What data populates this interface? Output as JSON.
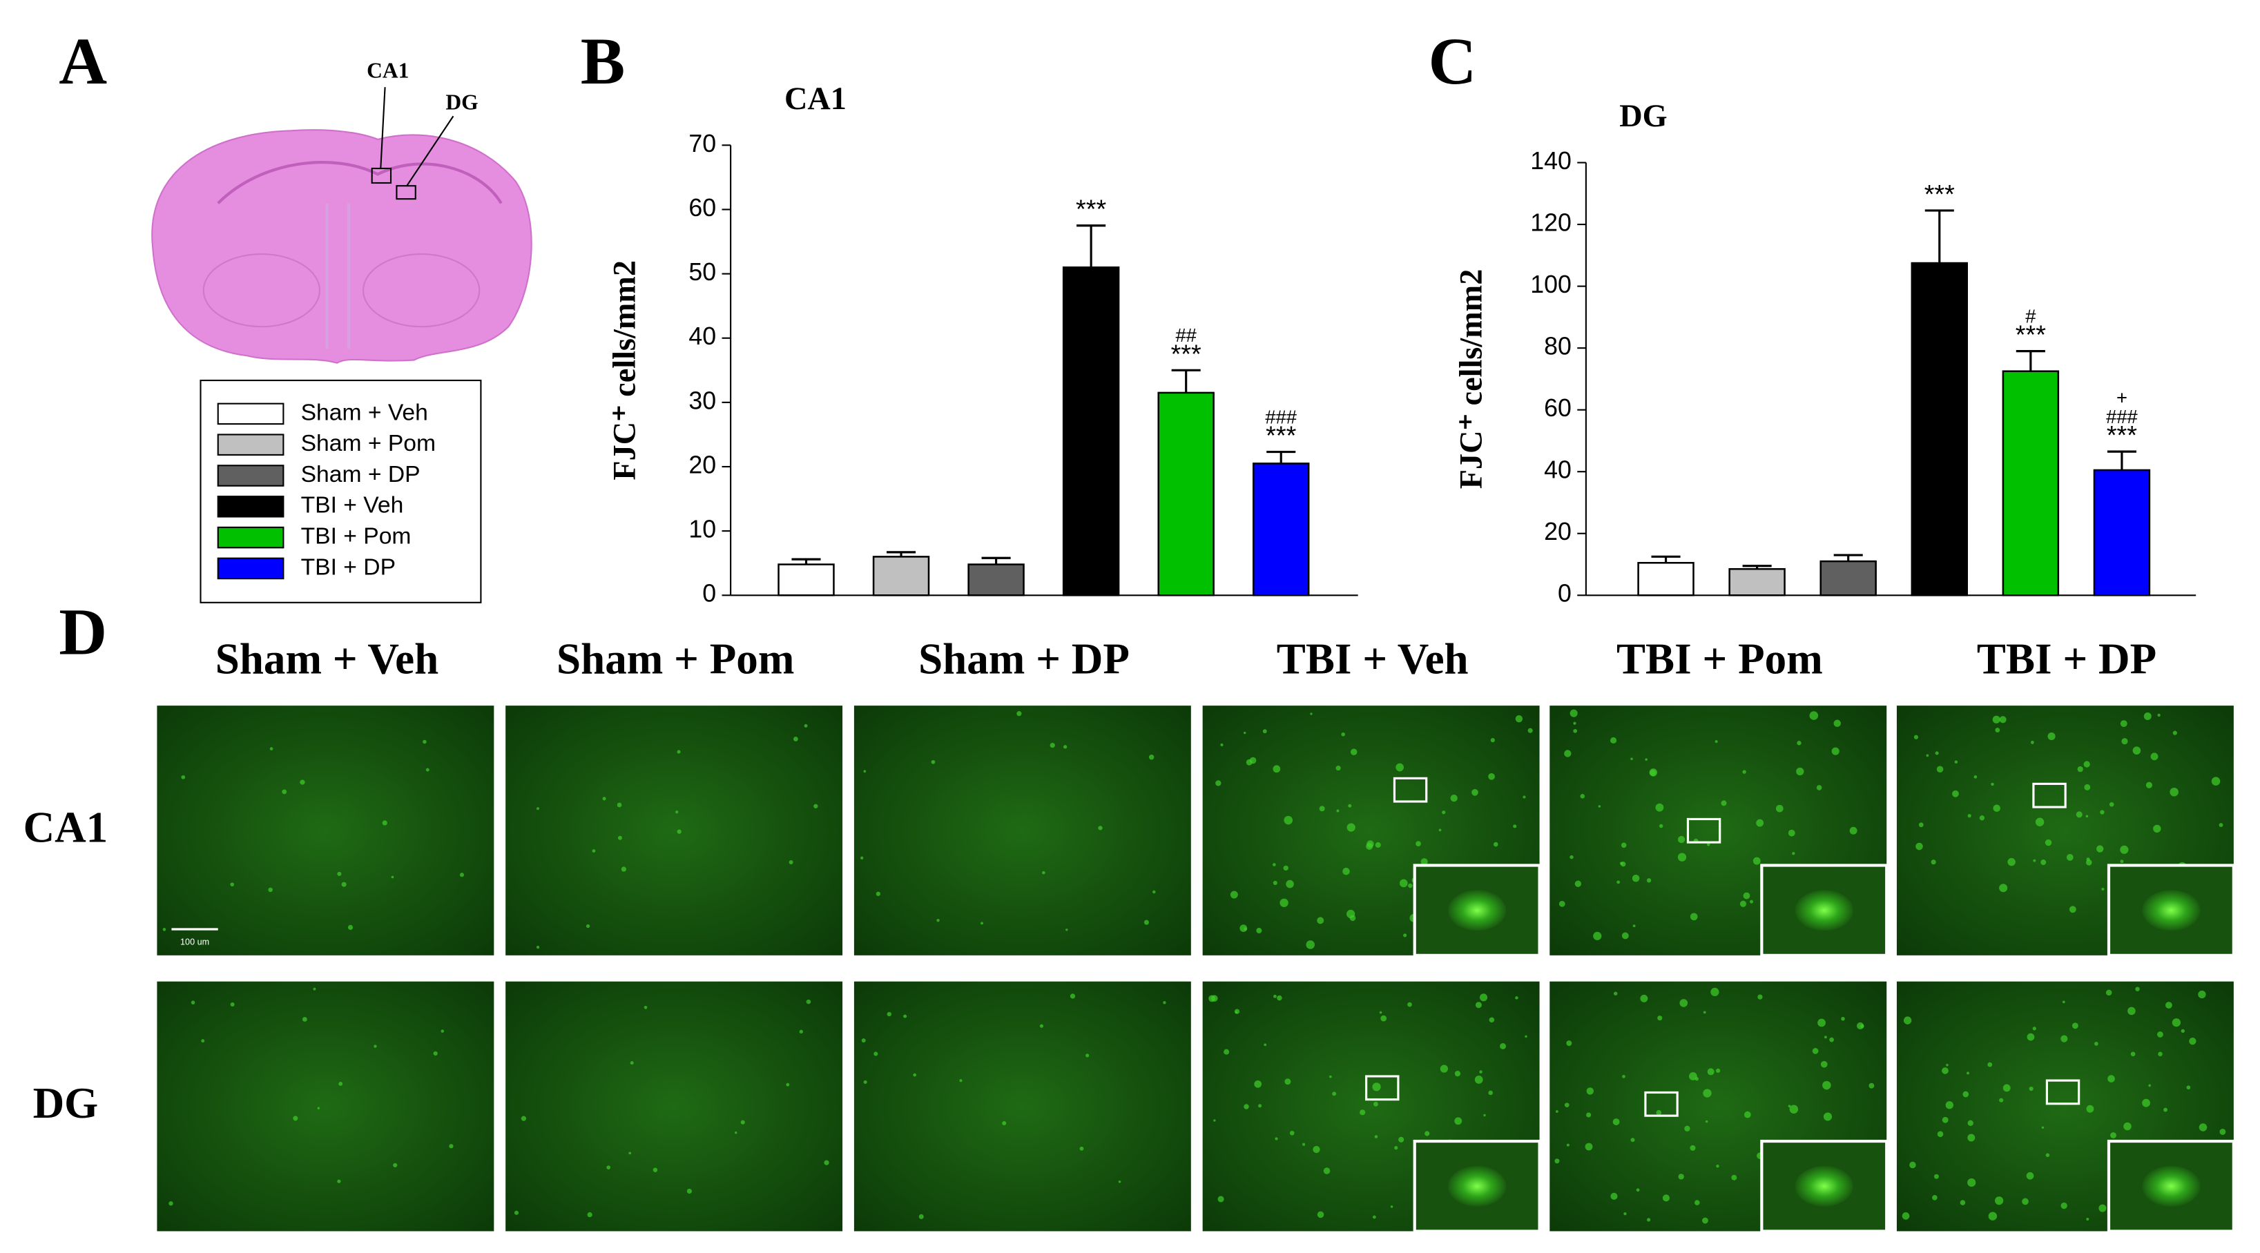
{
  "panels": {
    "a": "A",
    "b": "B",
    "c": "C",
    "d": "D"
  },
  "panel_a": {
    "regions": [
      "CA1",
      "DG"
    ]
  },
  "legend": [
    {
      "name": "Sham + Veh",
      "color": "#ffffff"
    },
    {
      "name": "Sham + Pom",
      "color": "#c0c0c0"
    },
    {
      "name": "Sham + DP",
      "color": "#606060"
    },
    {
      "name": "TBI + Veh",
      "color": "#000000"
    },
    {
      "name": "TBI + Pom",
      "color": "#00c000"
    },
    {
      "name": "TBI + DP",
      "color": "#0000ff"
    }
  ],
  "chart_data": [
    {
      "type": "bar",
      "title": "CA1",
      "y_label": "FJC⁺ cells/mm2",
      "values": [
        4.8,
        6,
        4.8,
        51,
        31.5,
        20.5
      ],
      "errors": [
        0.8,
        0.7,
        1,
        6.5,
        3.5,
        1.8
      ],
      "annotations": [
        null,
        null,
        null,
        [
          "***"
        ],
        [
          "##",
          "***"
        ],
        [
          "###",
          "***"
        ]
      ],
      "ylim": [
        0,
        70
      ],
      "yticks": [
        0,
        10,
        20,
        30,
        40,
        50,
        60,
        70
      ]
    },
    {
      "type": "bar",
      "title": "DG",
      "y_label": "FJC⁺ cells/mm2",
      "values": [
        10.5,
        8.5,
        11,
        107.5,
        72.5,
        40.5
      ],
      "errors": [
        2,
        1,
        2,
        17,
        6.5,
        6
      ],
      "annotations": [
        null,
        null,
        null,
        [
          "***"
        ],
        [
          "#",
          "***"
        ],
        [
          "+",
          "###",
          "***"
        ]
      ],
      "ylim": [
        0,
        140
      ],
      "yticks": [
        0,
        20,
        40,
        60,
        80,
        100,
        120,
        140
      ]
    }
  ],
  "panel_d": {
    "columns": [
      "Sham + Veh",
      "Sham + Pom",
      "Sham + DP",
      "TBI + Veh",
      "TBI + Pom",
      "TBI + DP"
    ],
    "rows": [
      "CA1",
      "DG"
    ],
    "scale_bar": "100 um"
  }
}
